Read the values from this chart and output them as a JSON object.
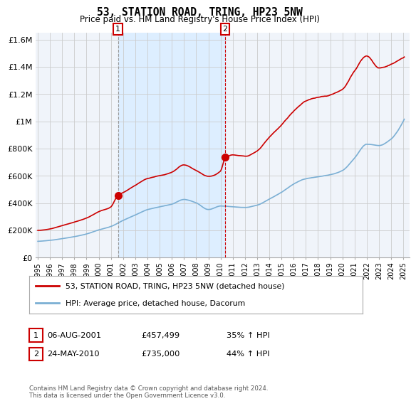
{
  "title": "53, STATION ROAD, TRING, HP23 5NW",
  "subtitle": "Price paid vs. HM Land Registry's House Price Index (HPI)",
  "legend_line1": "53, STATION ROAD, TRING, HP23 5NW (detached house)",
  "legend_line2": "HPI: Average price, detached house, Dacorum",
  "footnote": "Contains HM Land Registry data © Crown copyright and database right 2024.\nThis data is licensed under the Open Government Licence v3.0.",
  "purchase1_date": "06-AUG-2001",
  "purchase1_price": "£457,499",
  "purchase1_hpi": "35% ↑ HPI",
  "purchase2_date": "24-MAY-2010",
  "purchase2_price": "£735,000",
  "purchase2_hpi": "44% ↑ HPI",
  "red_line_color": "#cc0000",
  "blue_line_color": "#7bafd4",
  "shade_color": "#ddeeff",
  "marker_color": "#cc0000",
  "background_color": "#ffffff",
  "grid_color": "#cccccc",
  "ylim": [
    0,
    1650000
  ],
  "yticks": [
    0,
    200000,
    400000,
    600000,
    800000,
    1000000,
    1200000,
    1400000,
    1600000
  ],
  "ytick_labels": [
    "£0",
    "£200K",
    "£400K",
    "£600K",
    "£800K",
    "£1M",
    "£1.2M",
    "£1.4M",
    "£1.6M"
  ],
  "purchase1_x": 2001.58,
  "purchase1_y": 457499,
  "purchase2_x": 2010.37,
  "purchase2_y": 735000,
  "xlim_left": 1994.8,
  "xlim_right": 2025.5,
  "xtick_years": [
    1995,
    1996,
    1997,
    1998,
    1999,
    2000,
    2001,
    2002,
    2003,
    2004,
    2005,
    2006,
    2007,
    2008,
    2009,
    2010,
    2011,
    2012,
    2013,
    2014,
    2015,
    2016,
    2017,
    2018,
    2019,
    2020,
    2021,
    2022,
    2023,
    2024,
    2025
  ]
}
